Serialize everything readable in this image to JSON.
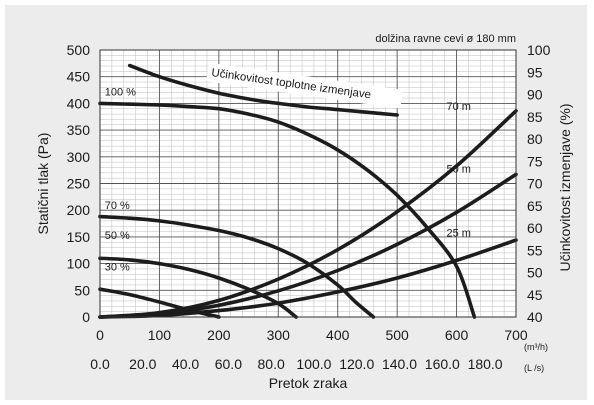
{
  "chart_data": {
    "type": "line",
    "note": "dolžina ravne cevi ø 180 mm",
    "xlabel": "Pretok zraka",
    "x_unit_m3h": "(m³/h)",
    "x_unit_ls": "(L /s)",
    "ylabel_left": "Statični tlak (Pa)",
    "ylabel_right": "Učinkovitost izmenjave (%)",
    "xlim": [
      0,
      700
    ],
    "ylim_left": [
      0,
      500
    ],
    "ylim_right": [
      40,
      100
    ],
    "x_ticks_m3h": [
      "0",
      "100",
      "200",
      "300",
      "400",
      "500",
      "600",
      "700"
    ],
    "x_ticks_ls": [
      "0.0",
      "20.0",
      "40.0",
      "60.0",
      "80.0",
      "100.0",
      "120.0",
      "140.0",
      "160.0",
      "180.0"
    ],
    "x_ticks_ls_values": [
      0,
      20,
      40,
      60,
      80,
      100,
      120,
      140,
      160,
      180
    ],
    "y_ticks_left": [
      "0",
      "50",
      "100",
      "150",
      "200",
      "250",
      "300",
      "350",
      "400",
      "450",
      "500"
    ],
    "y_ticks_right": [
      "40",
      "45",
      "50",
      "55",
      "60",
      "65",
      "70",
      "75",
      "80",
      "85",
      "90",
      "95",
      "100"
    ],
    "grid": true,
    "series": [
      {
        "name": "100 %",
        "axis": "left",
        "kind": "fan",
        "points": [
          [
            0,
            400
          ],
          [
            100,
            397
          ],
          [
            150,
            394
          ],
          [
            200,
            390
          ],
          [
            250,
            380
          ],
          [
            300,
            365
          ],
          [
            350,
            342
          ],
          [
            400,
            313
          ],
          [
            450,
            275
          ],
          [
            500,
            228
          ],
          [
            550,
            168
          ],
          [
            600,
            95
          ],
          [
            630,
            0
          ]
        ]
      },
      {
        "name": "70 %",
        "axis": "left",
        "kind": "fan",
        "points": [
          [
            0,
            188
          ],
          [
            50,
            185
          ],
          [
            100,
            180
          ],
          [
            150,
            172
          ],
          [
            200,
            162
          ],
          [
            250,
            148
          ],
          [
            300,
            128
          ],
          [
            350,
            100
          ],
          [
            400,
            60
          ],
          [
            430,
            28
          ],
          [
            460,
            0
          ]
        ]
      },
      {
        "name": "50 %",
        "axis": "left",
        "kind": "fan",
        "points": [
          [
            0,
            110
          ],
          [
            50,
            107
          ],
          [
            100,
            100
          ],
          [
            150,
            89
          ],
          [
            200,
            73
          ],
          [
            250,
            52
          ],
          [
            300,
            25
          ],
          [
            330,
            0
          ]
        ]
      },
      {
        "name": "30 %",
        "axis": "left",
        "kind": "fan",
        "points": [
          [
            0,
            52
          ],
          [
            50,
            42
          ],
          [
            100,
            28
          ],
          [
            150,
            13
          ],
          [
            200,
            0
          ]
        ]
      },
      {
        "name": "70 m",
        "axis": "left",
        "kind": "duct",
        "points": [
          [
            0,
            0
          ],
          [
            100,
            8
          ],
          [
            200,
            31
          ],
          [
            300,
            71
          ],
          [
            400,
            126
          ],
          [
            500,
            197
          ],
          [
            600,
            283
          ],
          [
            700,
            386
          ]
        ]
      },
      {
        "name": "50 m",
        "axis": "left",
        "kind": "duct",
        "points": [
          [
            0,
            0
          ],
          [
            100,
            6
          ],
          [
            200,
            22
          ],
          [
            300,
            49
          ],
          [
            400,
            87
          ],
          [
            500,
            136
          ],
          [
            600,
            196
          ],
          [
            700,
            267
          ]
        ]
      },
      {
        "name": "25 m",
        "axis": "left",
        "kind": "duct",
        "points": [
          [
            0,
            0
          ],
          [
            100,
            3
          ],
          [
            200,
            12
          ],
          [
            300,
            26
          ],
          [
            400,
            47
          ],
          [
            500,
            73
          ],
          [
            600,
            106
          ],
          [
            700,
            144
          ]
        ]
      },
      {
        "name": "Učinkovitost toplotne izmenjave",
        "axis": "right",
        "kind": "efficiency",
        "points": [
          [
            50,
            96.5
          ],
          [
            100,
            94
          ],
          [
            150,
            92
          ],
          [
            200,
            90.3
          ],
          [
            250,
            89
          ],
          [
            300,
            88
          ],
          [
            350,
            87.2
          ],
          [
            400,
            86.6
          ],
          [
            450,
            86
          ],
          [
            500,
            85.4
          ]
        ]
      }
    ],
    "labels": [
      "100 %",
      "70 %",
      "50 %",
      "30 %",
      "70 m",
      "50 m",
      "25 m",
      "Učinkovitost toplotne izmenjave"
    ]
  }
}
